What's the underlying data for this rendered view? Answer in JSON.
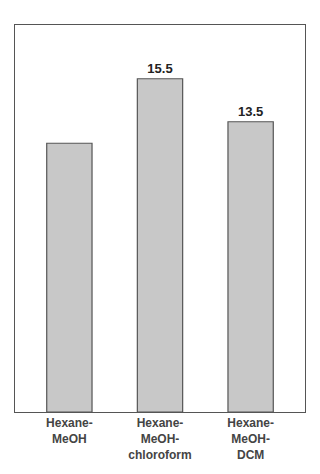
{
  "chart_data": {
    "type": "bar",
    "categories": [
      "Hexane-\nMeOH",
      "Hexane-\nMeOH-\nchloroform",
      "Hexane-\nMeOH-\nDCM"
    ],
    "values": [
      12.5,
      15.5,
      13.5
    ],
    "value_labels": [
      null,
      "15.5",
      "13.5"
    ],
    "color": "#c8c8c8",
    "ylim": [
      0,
      18
    ],
    "yticks": [],
    "grid": false,
    "tick_labels": "x"
  }
}
